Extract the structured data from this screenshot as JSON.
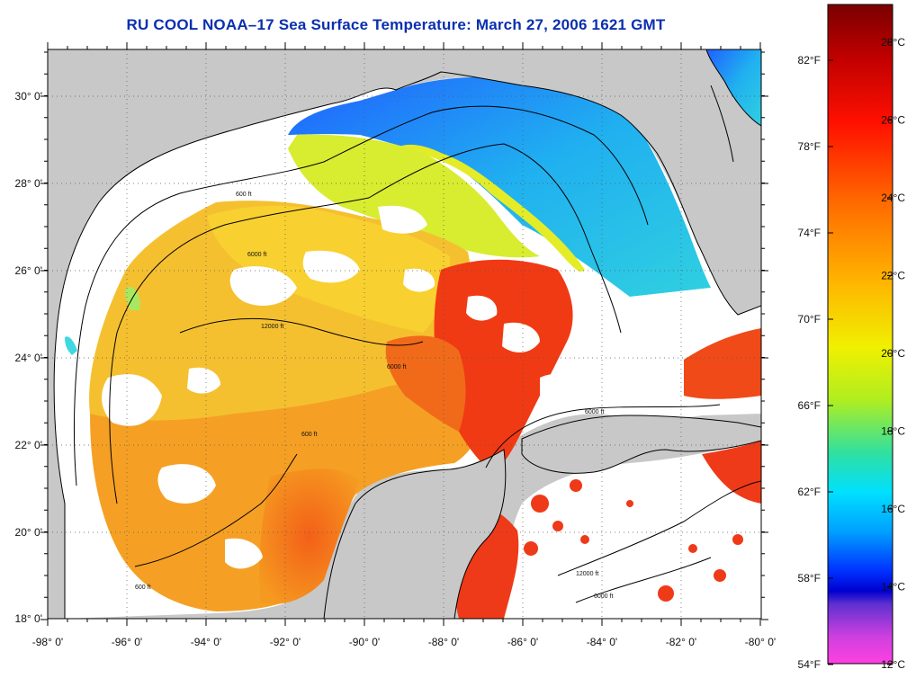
{
  "title": "RU COOL  NOAA–17  Sea Surface Temperature:  March 27, 2006 1621 GMT",
  "map": {
    "lon_ticks": [
      "-98° 0'",
      "-96° 0'",
      "-94° 0'",
      "-92° 0'",
      "-90° 0'",
      "-88° 0'",
      "-86° 0'",
      "-84° 0'",
      "-82° 0'",
      "-80° 0'"
    ],
    "lat_ticks": [
      "30° 0'",
      "28° 0'",
      "26° 0'",
      "24° 0'",
      "22° 0'",
      "20° 0'",
      "18° 0'"
    ],
    "fahrenheit_ticks": [
      "82°F",
      "78°F",
      "74°F",
      "70°F",
      "66°F",
      "62°F",
      "58°F",
      "54°F"
    ],
    "celsius_ticks": [
      "28°C",
      "26°C",
      "24°C",
      "22°C",
      "20°C",
      "18°C",
      "16°C",
      "14°C",
      "12°C"
    ],
    "contour_labels": [
      "600 ft",
      "6000 ft",
      "12000 ft"
    ],
    "colors": {
      "land": "#c8c8c8",
      "no_data": "#ffffff",
      "cold": "#1e8fff",
      "cool": "#2ee0d0",
      "mild": "#e8ee20",
      "warm": "#f5a020",
      "hot": "#f04010"
    }
  }
}
